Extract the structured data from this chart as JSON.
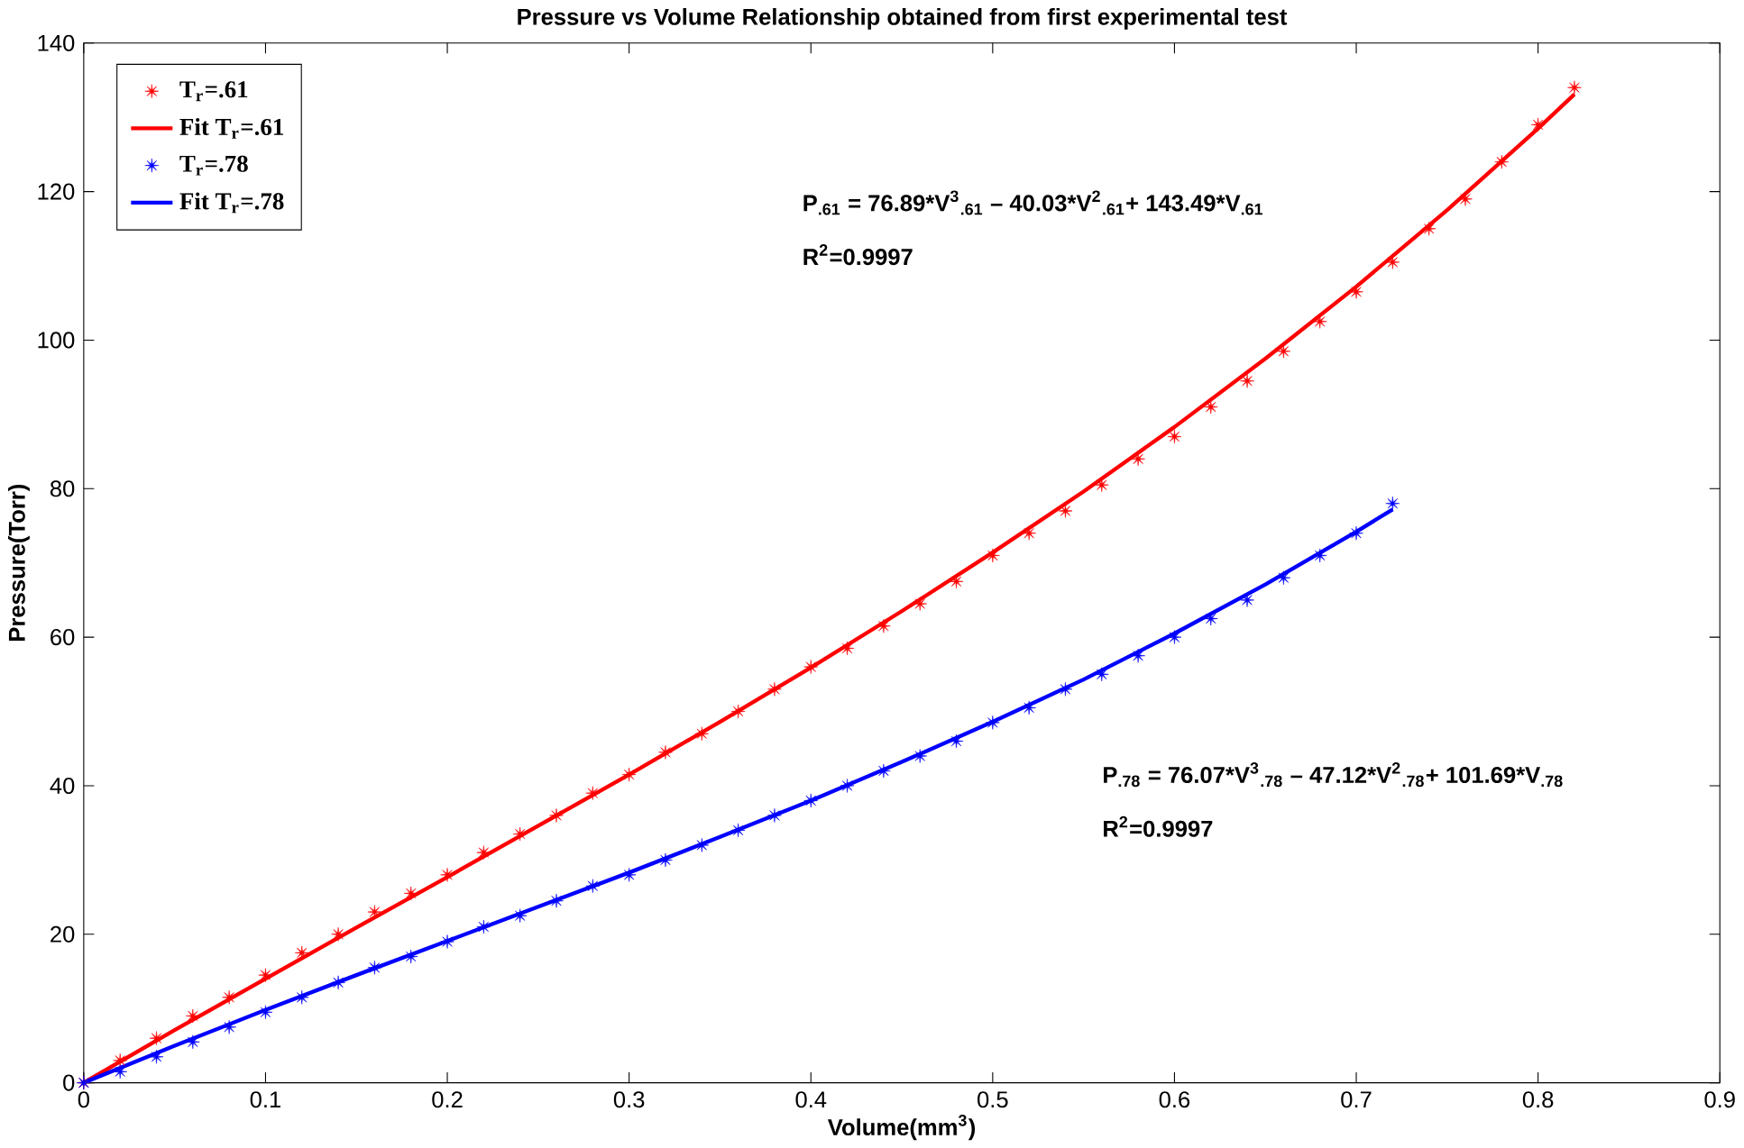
{
  "chart_data": {
    "type": "scatter",
    "title": "Pressure vs Volume Relationship obtained from first experimental test",
    "xlabel": "Volume(mm$^{3}$)",
    "ylabel": "Pressure(Torr)",
    "xlim": [
      0,
      0.9
    ],
    "ylim": [
      0,
      140
    ],
    "xticks": [
      0,
      0.1,
      0.2,
      0.3,
      0.4,
      0.5,
      0.6,
      0.7,
      0.8,
      0.9
    ],
    "yticks": [
      0,
      20,
      40,
      60,
      80,
      100,
      120,
      140
    ],
    "grid": false,
    "legend": "top left",
    "annotations": [
      "P$_{.61}$ = 76.89*V$^{3}$$_{.61}$ – 40.03*V$^{2}$$_{.61}$+ 143.49*V$_{.61}$",
      "R$^{2}$=0.9997",
      "P$_{.78}$ = 76.07*V$^{3}$$_{.78}$ – 47.12*V$^{2}$$_{.78}$+ 101.69*V$_{.78}$",
      "R$^{2}$=0.9997"
    ],
    "series": [
      {
        "name": "T$_{r}$=.61",
        "marker": "star",
        "color": "#ff0000",
        "x": [
          0,
          0.02,
          0.04,
          0.06,
          0.08,
          0.1,
          0.12,
          0.14,
          0.16,
          0.18,
          0.2,
          0.22,
          0.24,
          0.26,
          0.28,
          0.3,
          0.32,
          0.34,
          0.36,
          0.38,
          0.4,
          0.42,
          0.44,
          0.46,
          0.48,
          0.5,
          0.52,
          0.54,
          0.56,
          0.58,
          0.6,
          0.62,
          0.64,
          0.66,
          0.68,
          0.7,
          0.72,
          0.74,
          0.76,
          0.78,
          0.8,
          0.82
        ],
        "values": [
          0,
          3,
          6,
          9,
          11.5,
          14.5,
          17.5,
          20,
          23,
          25.5,
          28,
          31,
          33.5,
          36,
          39,
          41.5,
          44.5,
          47,
          50,
          53,
          56,
          58.5,
          61.5,
          64.5,
          67.5,
          71,
          74,
          77,
          80.5,
          84,
          87,
          91,
          94.5,
          98.5,
          102.5,
          106.5,
          110.5,
          115,
          119,
          124,
          129,
          134
        ]
      },
      {
        "name": "Fit T$_{r}$=.61",
        "type": "line",
        "line_style": "solid",
        "color": "#ff0000",
        "x": [
          0,
          0.05,
          0.1,
          0.15,
          0.2,
          0.25,
          0.3,
          0.35,
          0.4,
          0.45,
          0.5,
          0.55,
          0.6,
          0.65,
          0.7,
          0.75,
          0.8,
          0.82
        ],
        "values": [
          0,
          7.1,
          14,
          20.9,
          27.7,
          34.6,
          41.5,
          48.6,
          55.9,
          63.5,
          71.4,
          79.6,
          88.3,
          97.5,
          107.2,
          117.5,
          128.5,
          133.1
        ]
      },
      {
        "name": "T$_{r}$=.78",
        "marker": "star",
        "color": "#0000ff",
        "x": [
          0,
          0.02,
          0.04,
          0.06,
          0.08,
          0.1,
          0.12,
          0.14,
          0.16,
          0.18,
          0.2,
          0.22,
          0.24,
          0.26,
          0.28,
          0.3,
          0.32,
          0.34,
          0.36,
          0.38,
          0.4,
          0.42,
          0.44,
          0.46,
          0.48,
          0.5,
          0.52,
          0.54,
          0.56,
          0.58,
          0.6,
          0.62,
          0.64,
          0.66,
          0.68,
          0.7,
          0.72
        ],
        "values": [
          0,
          1.5,
          3.5,
          5.5,
          7.5,
          9.5,
          11.5,
          13.5,
          15.5,
          17,
          19,
          21,
          22.5,
          24.5,
          26.5,
          28,
          30,
          32,
          34,
          36,
          38,
          40,
          42,
          44,
          46,
          48.5,
          50.5,
          53,
          55,
          57.5,
          60,
          62.5,
          65,
          68,
          71,
          74,
          78
        ]
      },
      {
        "name": "Fit T$_{r}$=.78",
        "type": "line",
        "line_style": "solid",
        "color": "#0000ff",
        "x": [
          0,
          0.05,
          0.1,
          0.15,
          0.2,
          0.25,
          0.3,
          0.35,
          0.4,
          0.45,
          0.5,
          0.55,
          0.6,
          0.65,
          0.7,
          0.72
        ],
        "values": [
          0,
          5,
          9.8,
          14.5,
          19.1,
          23.7,
          28.3,
          33.1,
          38,
          43.2,
          48.6,
          54.3,
          60.5,
          67.1,
          74.2,
          77.2
        ]
      }
    ]
  }
}
